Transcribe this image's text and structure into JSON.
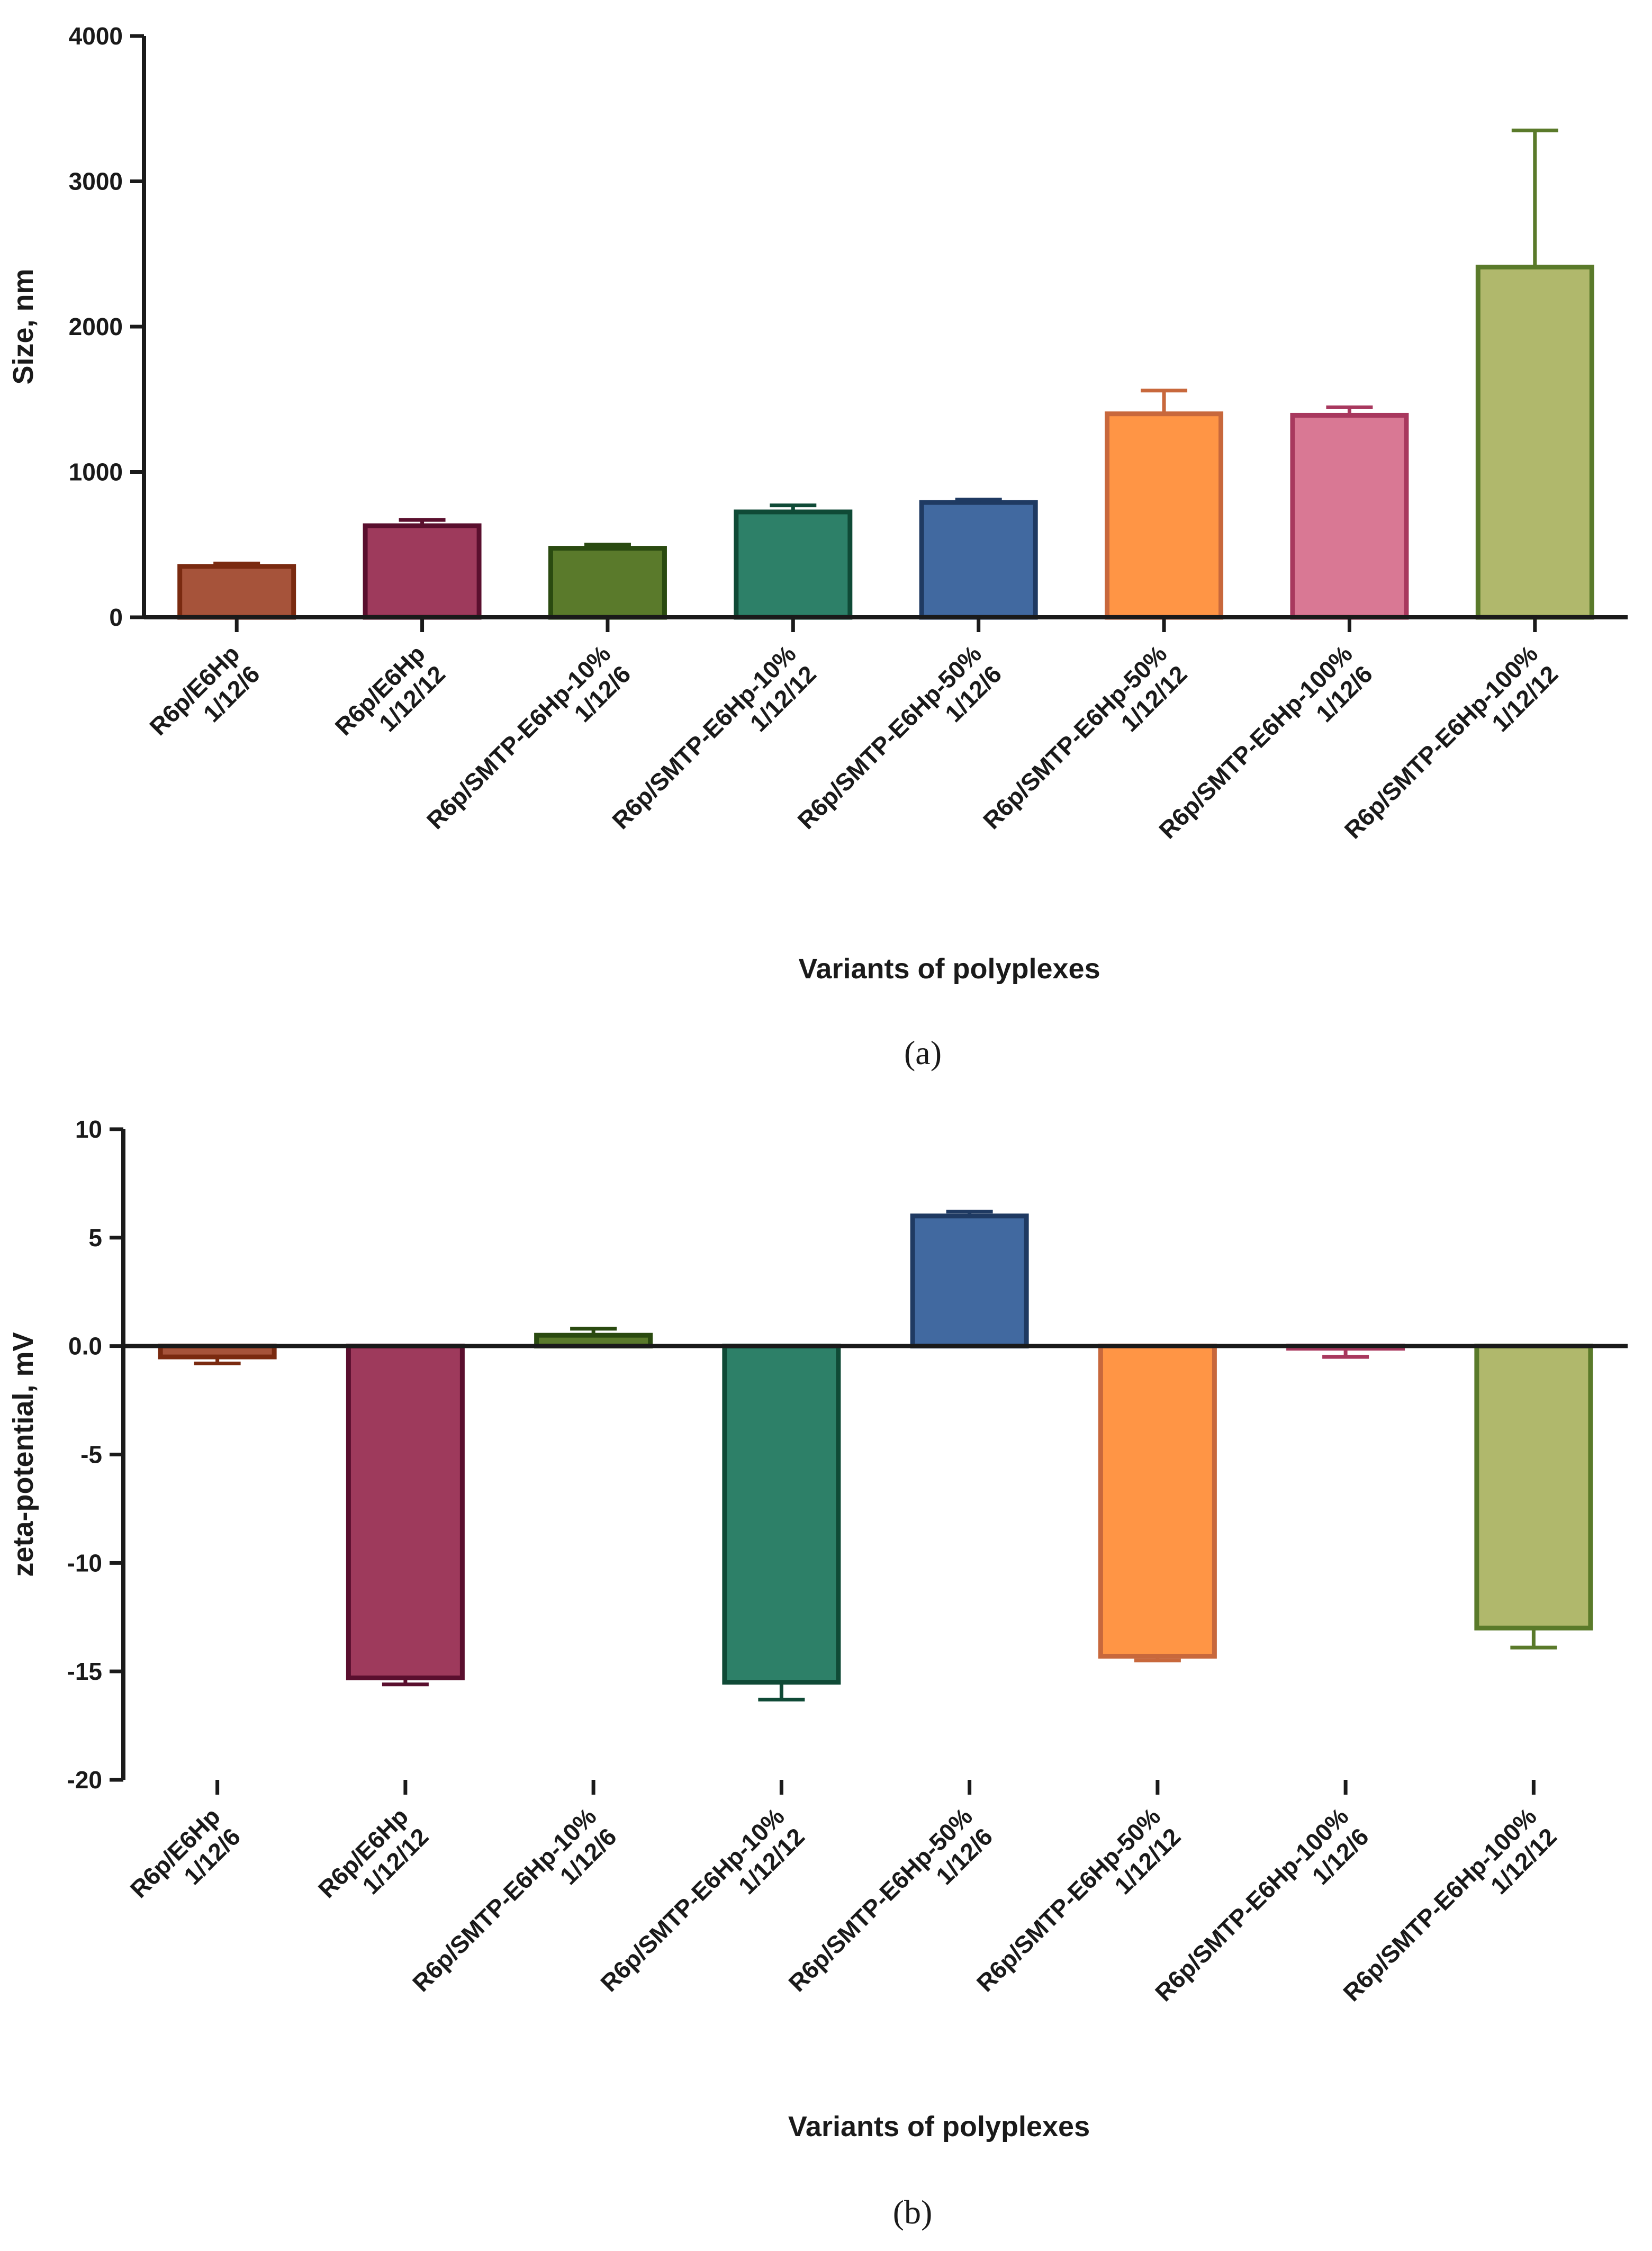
{
  "chart_data": [
    {
      "type": "bar",
      "panel_label": "(a)",
      "xlabel": "Variants of polyplexes",
      "ylabel": "Size, nm",
      "ylim": [
        0,
        4000
      ],
      "yticks": [
        0,
        1000,
        2000,
        3000,
        4000
      ],
      "categories": [
        [
          "R6p/E6Hp",
          "1/12/6"
        ],
        [
          "R6p/E6Hp",
          "1/12/12"
        ],
        [
          "R6p/SMTP-E6Hp-10%",
          "1/12/6"
        ],
        [
          "R6p/SMTP-E6Hp-10%",
          "1/12/12"
        ],
        [
          "R6p/SMTP-E6Hp-50%",
          "1/12/6"
        ],
        [
          "R6p/SMTP-E6Hp-50%",
          "1/12/12"
        ],
        [
          "R6p/SMTP-E6Hp-100%",
          "1/12/6"
        ],
        [
          "R6p/SMTP-E6Hp-100%",
          "1/12/12"
        ]
      ],
      "values": [
        350,
        630,
        475,
        725,
        790,
        1400,
        1390,
        2410
      ],
      "errors": [
        20,
        40,
        25,
        45,
        20,
        160,
        55,
        940
      ]
    },
    {
      "type": "bar",
      "panel_label": "(b)",
      "xlabel": "Variants of polyplexes",
      "ylabel": "zeta-potential, mV",
      "ylim": [
        -20,
        10
      ],
      "yticks": [
        -20,
        -15,
        -10,
        -5,
        0,
        5,
        10
      ],
      "yticklabels": [
        "-20",
        "-15",
        "-10",
        "-5",
        "0.0",
        "5",
        "10"
      ],
      "categories": [
        [
          "R6p/E6Hp",
          "1/12/6"
        ],
        [
          "R6p/E6Hp",
          "1/12/12"
        ],
        [
          "R6p/SMTP-E6Hp-10%",
          "1/12/6"
        ],
        [
          "R6p/SMTP-E6Hp-10%",
          "1/12/12"
        ],
        [
          "R6p/SMTP-E6Hp-50%",
          "1/12/6"
        ],
        [
          "R6p/SMTP-E6Hp-50%",
          "1/12/12"
        ],
        [
          "R6p/SMTP-E6Hp-100%",
          "1/12/6"
        ],
        [
          "R6p/SMTP-E6Hp-100%",
          "1/12/12"
        ]
      ],
      "values": [
        -0.5,
        -15.3,
        0.5,
        -15.5,
        6.0,
        -14.3,
        -0.1,
        -13.0
      ],
      "errors": [
        0.3,
        0.3,
        0.3,
        0.8,
        0.2,
        0.2,
        0.4,
        0.9
      ]
    }
  ],
  "colors": {
    "fills": [
      "#a6533a",
      "#9e3a5c",
      "#5a7a2b",
      "#2d8068",
      "#4169a0",
      "#ff9545",
      "#d97894",
      "#b0b86c"
    ],
    "strokes": [
      "#7a2a10",
      "#5a0f2e",
      "#2a4a10",
      "#0f4a36",
      "#1f3a62",
      "#c8683c",
      "#a8385e",
      "#5a7a2a"
    ],
    "axis": "#1a1a1a"
  }
}
